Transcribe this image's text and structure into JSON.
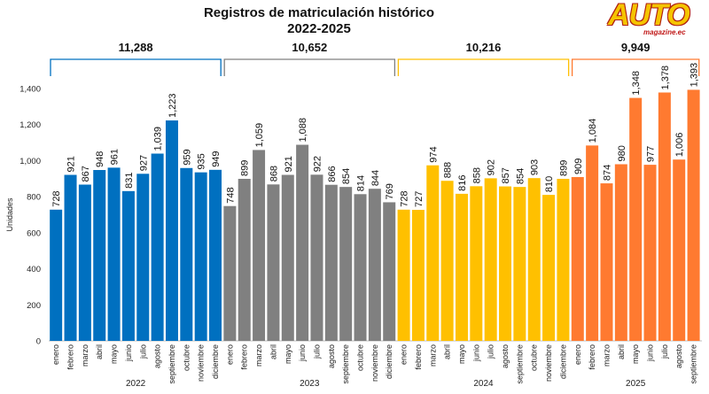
{
  "chart_data": {
    "type": "bar",
    "title": "Registros de matriculación histórico",
    "subtitle": "2022-2025",
    "ylabel": "Unidades",
    "ylim": [
      0,
      1400
    ],
    "yticks": [
      "0",
      "200",
      "400",
      "600",
      "800",
      "1,000",
      "1,200",
      "1,400"
    ],
    "ytick_values": [
      0,
      200,
      400,
      600,
      800,
      1000,
      1200,
      1400
    ],
    "groups": [
      {
        "year": "2022",
        "total": "11,288",
        "color": "#0070c0",
        "months": [
          "enero",
          "febrero",
          "marzo",
          "abril",
          "mayo",
          "junio",
          "julio",
          "agosto",
          "septiembre",
          "octubre",
          "noviembre",
          "diciembre"
        ],
        "values": [
          728,
          921,
          867,
          948,
          961,
          831,
          927,
          1039,
          1223,
          959,
          935,
          949
        ],
        "labels": [
          "728",
          "921",
          "867",
          "948",
          "961",
          "831",
          "927",
          "1,039",
          "1,223",
          "959",
          "935",
          "949"
        ]
      },
      {
        "year": "2023",
        "total": "10,652",
        "color": "#808080",
        "months": [
          "enero",
          "febrero",
          "marzo",
          "abril",
          "mayo",
          "junio",
          "julio",
          "agosto",
          "septiembre",
          "octubre",
          "noviembre",
          "diciembre"
        ],
        "values": [
          748,
          899,
          1059,
          868,
          921,
          1088,
          922,
          866,
          854,
          814,
          844,
          769
        ],
        "labels": [
          "748",
          "899",
          "1,059",
          "868",
          "921",
          "1,088",
          "922",
          "866",
          "854",
          "814",
          "844",
          "769"
        ]
      },
      {
        "year": "2024",
        "total": "10,216",
        "color": "#ffc000",
        "months": [
          "enero",
          "febrero",
          "marzo",
          "abril",
          "mayo",
          "junio",
          "julio",
          "agosto",
          "septiembre",
          "octubre",
          "noviembre",
          "diciembre"
        ],
        "values": [
          728,
          727,
          974,
          888,
          816,
          858,
          902,
          857,
          854,
          903,
          810,
          899
        ],
        "labels": [
          "728",
          "727",
          "974",
          "888",
          "816",
          "858",
          "902",
          "857",
          "854",
          "903",
          "810",
          "899"
        ]
      },
      {
        "year": "2025",
        "total": "9,949",
        "color": "#ff7a30",
        "months": [
          "enero",
          "febrero",
          "marzo",
          "abril",
          "mayo",
          "junio",
          "julio",
          "agosto",
          "septiembre"
        ],
        "values": [
          909,
          1084,
          874,
          980,
          1348,
          977,
          1378,
          1006,
          1393
        ],
        "labels": [
          "909",
          "1,084",
          "874",
          "980",
          "1,348",
          "977",
          "1,378",
          "1,006",
          "1,393"
        ]
      }
    ]
  },
  "logo": {
    "main": "AUTO",
    "sub": "magazine.ec",
    "main_color": "#f5c400",
    "sub_color": "#c01818"
  }
}
